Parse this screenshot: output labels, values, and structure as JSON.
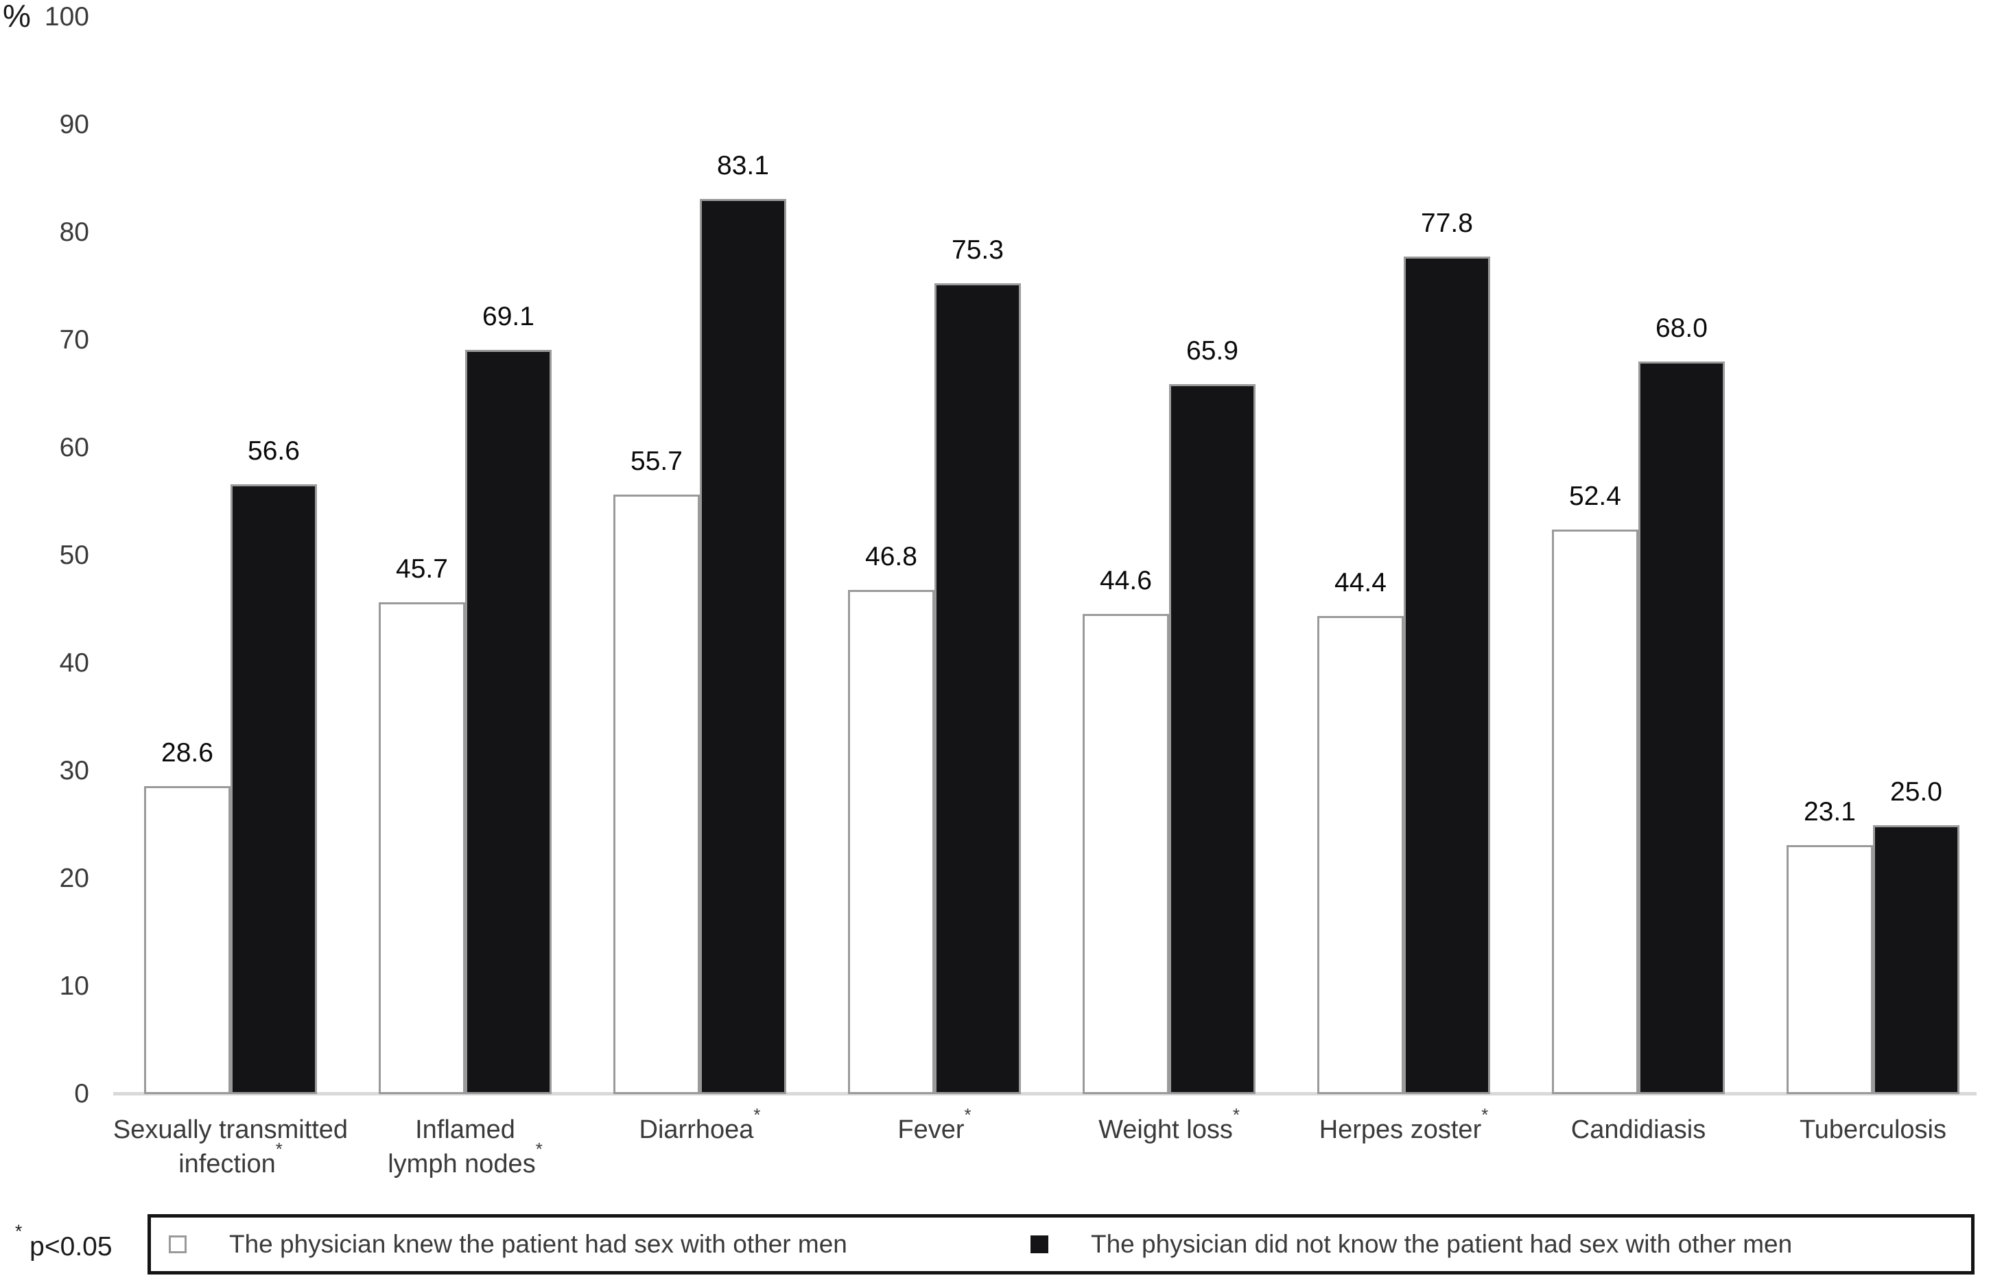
{
  "chart_data": {
    "type": "bar",
    "ylabel": "%",
    "ylim": [
      0,
      100
    ],
    "yticks": [
      0,
      10,
      20,
      30,
      40,
      50,
      60,
      70,
      80,
      90,
      100
    ],
    "grid": false,
    "legend_position": "bottom-boxed",
    "categories": [
      {
        "label": "Sexually transmitted infection*",
        "lines": [
          "Sexually transmitted",
          "infection"
        ],
        "starred": true
      },
      {
        "label": "Inflamed lymph nodes*",
        "lines": [
          "Inflamed",
          "lymph nodes"
        ],
        "starred": true
      },
      {
        "label": "Diarrhoea*",
        "lines": [
          "Diarrhoea"
        ],
        "starred": true
      },
      {
        "label": "Fever*",
        "lines": [
          "Fever"
        ],
        "starred": true
      },
      {
        "label": "Weight loss*",
        "lines": [
          "Weight loss"
        ],
        "starred": true
      },
      {
        "label": "Herpes zoster*",
        "lines": [
          "Herpes zoster"
        ],
        "starred": true
      },
      {
        "label": "Candidiasis",
        "lines": [
          "Candidiasis"
        ],
        "starred": false
      },
      {
        "label": "Tuberculosis",
        "lines": [
          "Tuberculosis"
        ],
        "starred": false
      }
    ],
    "series": [
      {
        "key": "knew",
        "name": "The physician knew the patient had sex with other men",
        "swatch": "white",
        "fill_color": "#ffffff",
        "border_color": "#9a9a9a",
        "values": [
          28.6,
          45.7,
          55.7,
          46.8,
          44.6,
          44.4,
          52.4,
          23.1
        ]
      },
      {
        "key": "did-not-know",
        "name": "The physician did not know the patient had sex with other men",
        "swatch": "black",
        "fill_color": "#141417",
        "border_color": "#9a9a9a",
        "values": [
          56.6,
          69.1,
          83.1,
          75.3,
          65.9,
          77.8,
          68.0,
          25.0
        ]
      }
    ],
    "footnote_marker": "*",
    "footnote_text": "p<0.05",
    "axis_line_color": "#d9d9d9"
  }
}
